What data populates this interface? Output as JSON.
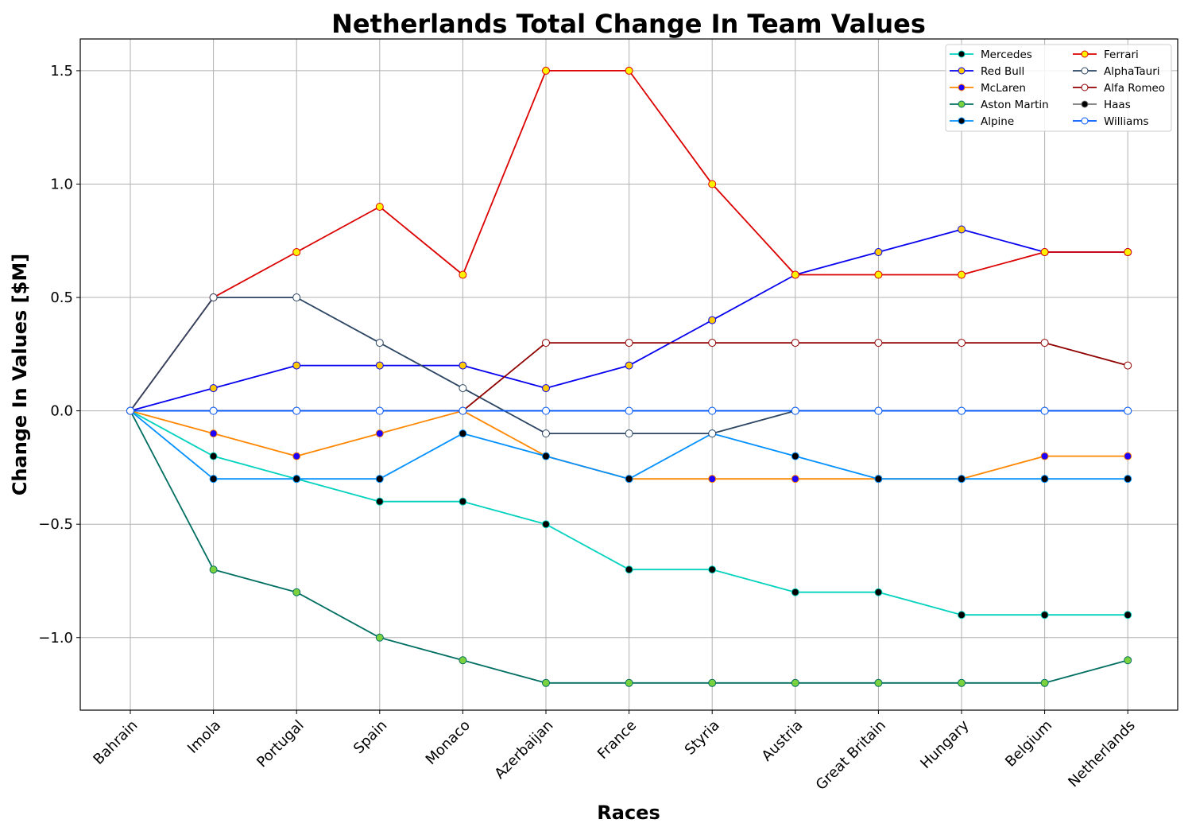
{
  "chart_data": {
    "type": "line",
    "title": "Netherlands Total Change In Team Values",
    "xlabel": "Races",
    "ylabel": "Change In Values [$M]",
    "categories": [
      "Bahrain",
      "Imola",
      "Portugal",
      "Spain",
      "Monaco",
      "Azerbaijan",
      "France",
      "Styria",
      "Austria",
      "Great Britain",
      "Hungary",
      "Belgium",
      "Netherlands"
    ],
    "ylim": [
      -1.32,
      1.64
    ],
    "yticks": [
      -1.0,
      -0.5,
      0.0,
      0.5,
      1.0,
      1.5
    ],
    "ytick_labels": [
      "−1.0",
      "−0.5",
      "0.0",
      "0.5",
      "1.0",
      "1.5"
    ],
    "grid": true,
    "legend_position": "top-right",
    "legend_columns": 2,
    "series": [
      {
        "name": "Mercedes",
        "color": "#00D2BE",
        "marker_fill": "#000000",
        "marker_edge": "#00D2BE",
        "values": [
          0,
          -0.2,
          -0.3,
          -0.4,
          -0.4,
          -0.5,
          -0.7,
          -0.7,
          -0.8,
          -0.8,
          -0.9,
          -0.9,
          -0.9
        ]
      },
      {
        "name": "Red Bull",
        "color": "#0600EF",
        "marker_fill": "#FFC906",
        "marker_edge": "#0600EF",
        "values": [
          0,
          0.1,
          0.2,
          0.2,
          0.2,
          0.1,
          0.2,
          0.4,
          0.6,
          0.7,
          0.8,
          0.7,
          0.7
        ]
      },
      {
        "name": "McLaren",
        "color": "#FF8700",
        "marker_fill": "#1E00FF",
        "marker_edge": "#FF8700",
        "values": [
          0,
          -0.1,
          -0.2,
          -0.1,
          0,
          -0.2,
          -0.3,
          -0.3,
          -0.3,
          -0.3,
          -0.3,
          -0.2,
          -0.2
        ]
      },
      {
        "name": "Aston Martin",
        "color": "#006F62",
        "marker_fill": "#7BD23E",
        "marker_edge": "#006F62",
        "values": [
          0,
          -0.7,
          -0.8,
          -1.0,
          -1.1,
          -1.2,
          -1.2,
          -1.2,
          -1.2,
          -1.2,
          -1.2,
          -1.2,
          -1.1
        ]
      },
      {
        "name": "Alpine",
        "color": "#0090FF",
        "marker_fill": "#000000",
        "marker_edge": "#0090FF",
        "values": [
          0,
          -0.3,
          -0.3,
          -0.3,
          -0.1,
          -0.2,
          -0.3,
          -0.1,
          -0.2,
          -0.3,
          -0.3,
          -0.3,
          -0.3
        ]
      },
      {
        "name": "Ferrari",
        "color": "#DC0000",
        "marker_fill": "#FFF200",
        "marker_edge": "#DC0000",
        "values": [
          0,
          0.5,
          0.7,
          0.9,
          0.6,
          1.5,
          1.5,
          1.0,
          0.6,
          0.6,
          0.6,
          0.7,
          0.7
        ]
      },
      {
        "name": "AlphaTauri",
        "color": "#2B4562",
        "marker_fill": "#FFFFFF",
        "marker_edge": "#2B4562",
        "values": [
          0,
          0.5,
          0.5,
          0.3,
          0.1,
          -0.1,
          -0.1,
          -0.1,
          0,
          0,
          0,
          0,
          0
        ]
      },
      {
        "name": "Alfa Romeo",
        "color": "#900000",
        "marker_fill": "#FFFFFF",
        "marker_edge": "#900000",
        "values": [
          0,
          0,
          0,
          0,
          0,
          0.3,
          0.3,
          0.3,
          0.3,
          0.3,
          0.3,
          0.3,
          0.2
        ]
      },
      {
        "name": "Haas",
        "color": "#787878",
        "marker_fill": "#000000",
        "marker_edge": "#787878",
        "values": [
          0,
          0,
          0,
          0,
          0,
          0,
          0,
          0,
          0,
          0,
          0,
          0,
          0
        ]
      },
      {
        "name": "Williams",
        "color": "#005AFF",
        "marker_fill": "#FFFFFF",
        "marker_edge": "#005AFF",
        "values": [
          0,
          0,
          0,
          0,
          0,
          0,
          0,
          0,
          0,
          0,
          0,
          0,
          0
        ]
      }
    ]
  }
}
